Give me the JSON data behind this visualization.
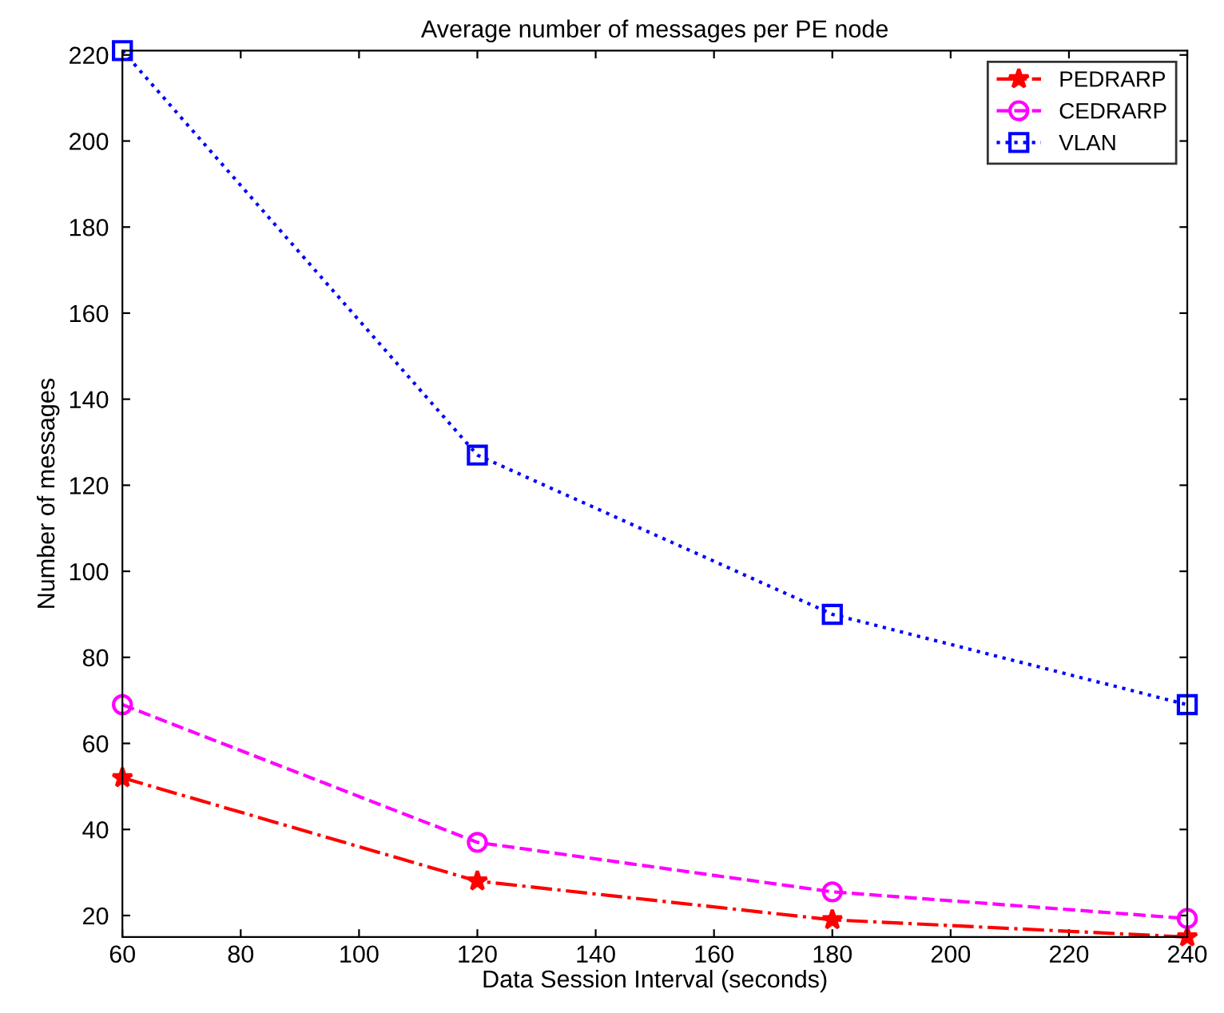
{
  "chart_data": {
    "type": "line",
    "title": "Average number of messages per PE node",
    "xlabel": "Data Session Interval (seconds)",
    "ylabel": "Number of messages",
    "x": [
      60,
      120,
      180,
      240
    ],
    "series": [
      {
        "name": "PEDRARP",
        "color": "#ff0000",
        "values": [
          52,
          28,
          19,
          15
        ],
        "marker": "star",
        "line_style": "dashdot"
      },
      {
        "name": "CEDRARP",
        "color": "#ff00ff",
        "values": [
          69,
          37,
          25.5,
          19.3
        ],
        "marker": "circle",
        "line_style": "dashed"
      },
      {
        "name": "VLAN",
        "color": "#0000ff",
        "values": [
          221,
          127,
          90,
          69
        ],
        "marker": "square",
        "line_style": "dotted"
      }
    ],
    "xlim": [
      60,
      240
    ],
    "xticks": [
      60,
      80,
      100,
      120,
      140,
      160,
      180,
      200,
      220,
      240
    ],
    "ylim": [
      15,
      221
    ],
    "yticks": [
      20,
      40,
      60,
      80,
      100,
      120,
      140,
      160,
      180,
      200,
      220
    ],
    "grid": false,
    "legend": "top right"
  }
}
